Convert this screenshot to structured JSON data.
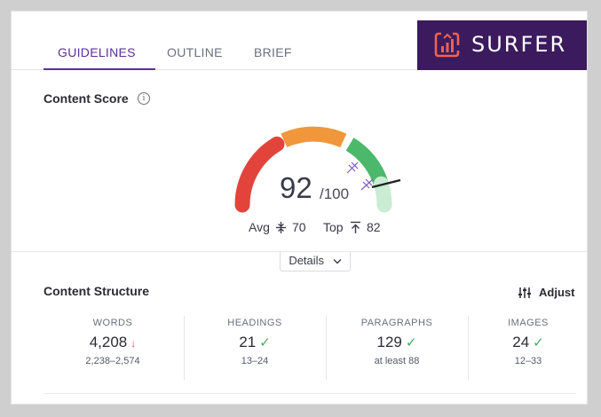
{
  "tabs": [
    {
      "label": "GUIDELINES",
      "active": true
    },
    {
      "label": "OUTLINE",
      "active": false
    },
    {
      "label": "BRIEF",
      "active": false
    }
  ],
  "brand": {
    "name": "SURFER",
    "logo_icon": "surfer-chart-logo-icon",
    "bg_color": "#3c1a5e",
    "logo_color": "#f0614e"
  },
  "content_score": {
    "title": "Content Score",
    "info_icon": "i",
    "score": "92",
    "total": "/100",
    "score_fraction": 0.92,
    "avg_label": "Avg",
    "avg_value": "70",
    "top_label": "Top",
    "top_value": "82",
    "gauge_colors": {
      "red": "#e2443b",
      "orange": "#f0973b",
      "green": "#4cb86b",
      "light_green": "#c9ecd3"
    },
    "details_label": "Details",
    "details_icon": "chevron-down-icon"
  },
  "content_structure": {
    "title": "Content Structure",
    "adjust_label": "Adjust",
    "adjust_icon": "sliders-icon",
    "metrics": [
      {
        "label": "WORDS",
        "value": "4,208",
        "status": "down",
        "status_icon": "↓",
        "range": "2,238–2,574"
      },
      {
        "label": "HEADINGS",
        "value": "21",
        "status": "ok",
        "status_icon": "✓",
        "range": "13–24"
      },
      {
        "label": "PARAGRAPHS",
        "value": "129",
        "status": "ok",
        "status_icon": "✓",
        "range": "at least 88"
      },
      {
        "label": "IMAGES",
        "value": "24",
        "status": "ok",
        "status_icon": "✓",
        "range": "12–33"
      }
    ]
  },
  "colors": {
    "accent": "#5b2f97",
    "check": "#3fae5e",
    "down": "#e04b4b"
  }
}
